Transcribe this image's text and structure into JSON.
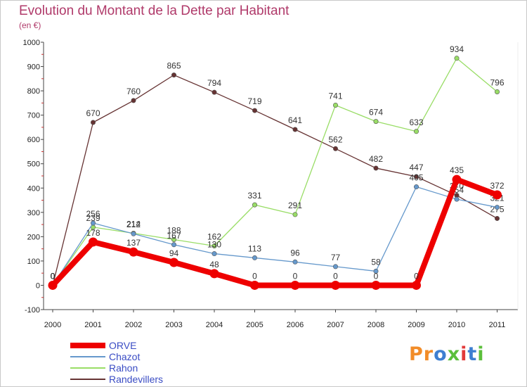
{
  "title": "Evolution du Montant de la Dette par Habitant",
  "subtitle": "(en €)",
  "brand": {
    "text": "Proxiti",
    "letters": [
      {
        "ch": "P",
        "color": "#f28c28"
      },
      {
        "ch": "r",
        "color": "#f28c28"
      },
      {
        "ch": "o",
        "color": "#3e7fd1"
      },
      {
        "ch": "x",
        "color": "#5cbf3c"
      },
      {
        "ch": "i",
        "color": "#e23a3a"
      },
      {
        "ch": "t",
        "color": "#3e7fd1"
      },
      {
        "ch": "i",
        "color": "#5cbf3c"
      }
    ]
  },
  "chart_data": {
    "type": "line",
    "title": "Evolution du Montant de la Dette par Habitant",
    "ylabel": "(en €)",
    "x": [
      "2000",
      "2001",
      "2002",
      "2003",
      "2004",
      "2005",
      "2006",
      "2007",
      "2008",
      "2009",
      "2010",
      "2011"
    ],
    "ylim": [
      -100,
      1000
    ],
    "yticks": [
      -100,
      0,
      100,
      200,
      300,
      400,
      500,
      600,
      700,
      800,
      900,
      1000
    ],
    "grid": false,
    "legend": "bottom-left",
    "series": [
      {
        "name": "ORVE",
        "color": "#ee0000",
        "values": [
          0,
          178,
          137,
          94,
          48,
          0,
          0,
          0,
          0,
          0,
          435,
          372
        ]
      },
      {
        "name": "Chazot",
        "color": "#6699cc",
        "values": [
          0,
          256,
          212,
          167,
          130,
          113,
          96,
          77,
          58,
          405,
          354,
          321
        ]
      },
      {
        "name": "Rahon",
        "color": "#99dd66",
        "values": [
          0,
          239,
          214,
          188,
          162,
          331,
          291,
          741,
          674,
          633,
          934,
          796
        ]
      },
      {
        "name": "Randevillers",
        "color": "#663333",
        "values": [
          0,
          670,
          760,
          865,
          794,
          719,
          641,
          562,
          482,
          447,
          370,
          275
        ]
      }
    ]
  }
}
